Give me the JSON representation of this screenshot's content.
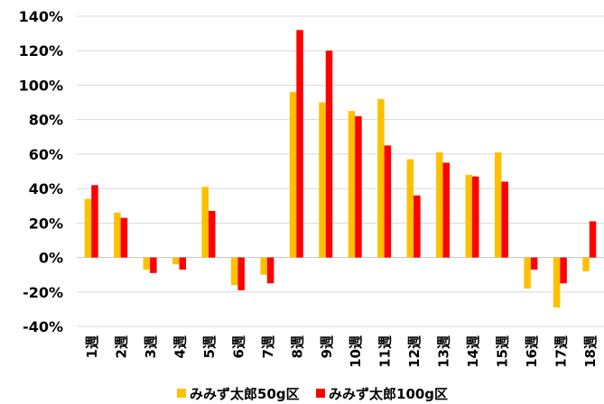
{
  "chart_data": {
    "type": "bar",
    "categories": [
      "1週",
      "2週",
      "3週",
      "4週",
      "5週",
      "6週",
      "7週",
      "8週",
      "9週",
      "10週",
      "11週",
      "12週",
      "13週",
      "14週",
      "15週",
      "16週",
      "17週",
      "18週"
    ],
    "series": [
      {
        "name": "みみず太郎50g区",
        "color": "#FFC000",
        "values": [
          34,
          26,
          -7,
          -4,
          41,
          -16,
          -10,
          96,
          90,
          85,
          92,
          57,
          61,
          48,
          61,
          -18,
          -29,
          -8
        ]
      },
      {
        "name": "みみず太郎100g区",
        "color": "#FF0000",
        "values": [
          42,
          23,
          -9,
          -7,
          27,
          -19,
          -15,
          132,
          120,
          82,
          65,
          36,
          55,
          47,
          44,
          -7,
          -15,
          21
        ]
      }
    ],
    "y_ticks": [
      "140%",
      "120%",
      "100%",
      "80%",
      "60%",
      "40%",
      "20%",
      "0%",
      "-20%",
      "-40%"
    ],
    "ylim": [
      -40,
      140
    ],
    "grid": true,
    "legend_position": "bottom",
    "title": "",
    "xlabel": "",
    "ylabel": ""
  }
}
